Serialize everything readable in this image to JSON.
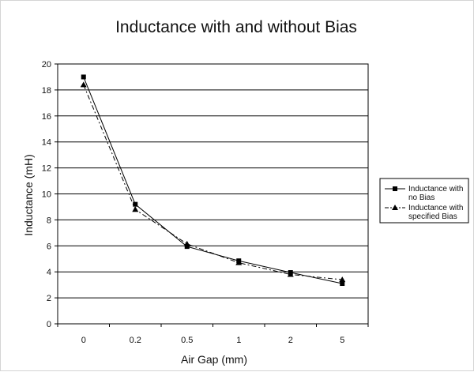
{
  "chart_data": {
    "type": "line",
    "title": "Inductance with and without Bias",
    "xlabel": "Air Gap (mm)",
    "ylabel": "Inductance (mH)",
    "categories": [
      "0",
      "0.2",
      "0.5",
      "1",
      "2",
      "5"
    ],
    "ylim": [
      0,
      20
    ],
    "yticks": [
      "0",
      "2",
      "4",
      "6",
      "8",
      "10",
      "12",
      "14",
      "16",
      "18",
      "20"
    ],
    "grid": "horizontal",
    "legend_position": "right",
    "series": [
      {
        "name_lines": [
          "Inductance with",
          "no Bias"
        ],
        "values": [
          19.0,
          9.2,
          5.95,
          4.85,
          3.95,
          3.1
        ],
        "marker": "square",
        "line_style": "solid",
        "color": "#000000"
      },
      {
        "name_lines": [
          "Inductance with",
          "specified Bias"
        ],
        "values": [
          18.4,
          8.8,
          6.15,
          4.7,
          3.8,
          3.4
        ],
        "marker": "triangle",
        "line_style": "dash-dot",
        "color": "#000000"
      }
    ]
  }
}
